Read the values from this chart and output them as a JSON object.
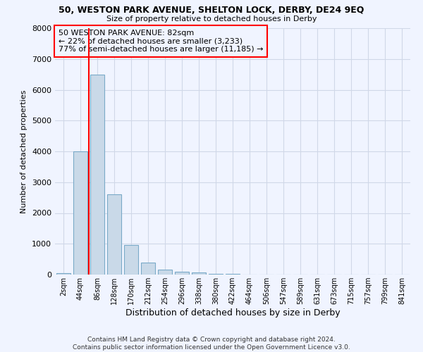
{
  "title_line1": "50, WESTON PARK AVENUE, SHELTON LOCK, DERBY, DE24 9EQ",
  "title_line2": "Size of property relative to detached houses in Derby",
  "xlabel": "Distribution of detached houses by size in Derby",
  "ylabel": "Number of detached properties",
  "bin_labels": [
    "2sqm",
    "44sqm",
    "86sqm",
    "128sqm",
    "170sqm",
    "212sqm",
    "254sqm",
    "296sqm",
    "338sqm",
    "380sqm",
    "422sqm",
    "464sqm",
    "506sqm",
    "547sqm",
    "589sqm",
    "631sqm",
    "673sqm",
    "715sqm",
    "757sqm",
    "799sqm",
    "841sqm"
  ],
  "bar_values": [
    50,
    4000,
    6500,
    2600,
    950,
    400,
    150,
    100,
    70,
    30,
    15,
    5,
    5,
    3,
    2,
    1,
    1,
    1,
    0,
    0,
    0
  ],
  "bar_color": "#c9d9e8",
  "bar_edgecolor": "#7aaac8",
  "annotation_box_text": "50 WESTON PARK AVENUE: 82sqm\n← 22% of detached houses are smaller (3,233)\n77% of semi-detached houses are larger (11,185) →",
  "annotation_box_color": "red",
  "vline_color": "red",
  "ylim": [
    0,
    8000
  ],
  "yticks": [
    0,
    1000,
    2000,
    3000,
    4000,
    5000,
    6000,
    7000,
    8000
  ],
  "grid_color": "#d0d8e8",
  "footer_text": "Contains HM Land Registry data © Crown copyright and database right 2024.\nContains public sector information licensed under the Open Government Licence v3.0.",
  "bg_color": "#f0f4ff"
}
